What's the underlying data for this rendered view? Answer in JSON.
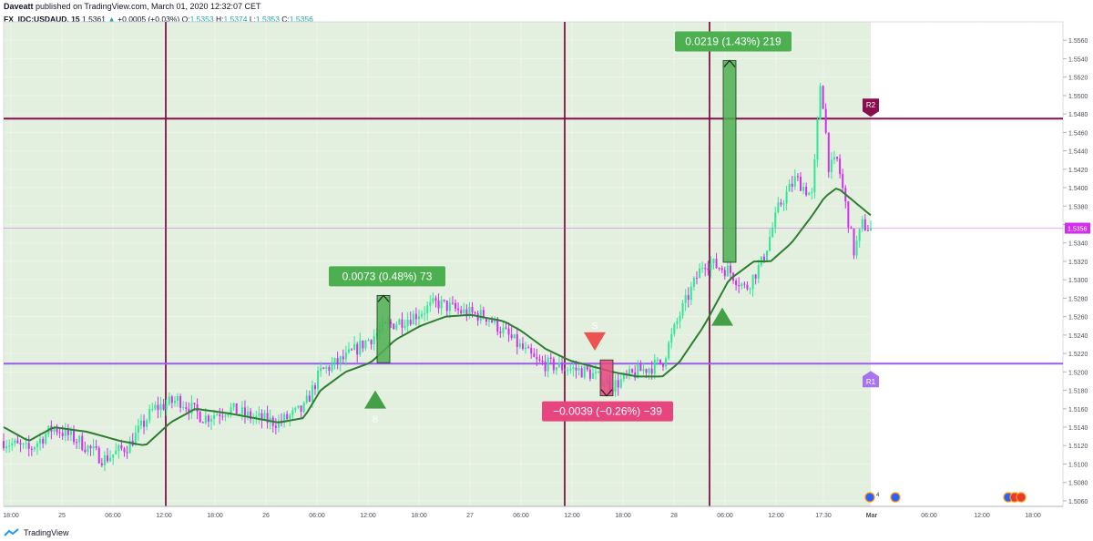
{
  "header": {
    "author": "Daveatt",
    "published_text": "published on TradingView.com, March 01, 2020 12:32:07 CET",
    "symbol": "FX_IDC:USDAUD, 15",
    "last": "1.5361",
    "change": "+0.0005 (+0.03%)",
    "o_label": "O:",
    "o_value": "1.5353",
    "h_label": "H:",
    "h_value": "1.5374",
    "l_label": "L:",
    "l_value": "1.5353",
    "c_label": "C:",
    "c_value": "1.5356"
  },
  "footer": {
    "brand": "TradingView"
  },
  "colors": {
    "bg_shade": "#e3efdf",
    "up": "#2ee896",
    "down": "#d22ef0",
    "ma": "#2e7d32",
    "res_line": "#880e4f",
    "sup_line": "#9c5cf0",
    "vline": "#882a55",
    "measure_up": "#4caf50",
    "measure_down": "#e7457e"
  },
  "chart_data": {
    "type": "candlestick",
    "symbol": "FX_IDC:USDAUD, 15",
    "price_axis": {
      "ticks": [
        "1.5560",
        "1.5540",
        "1.5520",
        "1.5500",
        "1.5480",
        "1.5460",
        "1.5440",
        "1.5420",
        "1.5400",
        "1.5380",
        "1.5360",
        "1.5340",
        "1.5320",
        "1.5300",
        "1.5280",
        "1.5260",
        "1.5240",
        "1.5220",
        "1.5200",
        "1.5180",
        "1.5160",
        "1.5140",
        "1.5120",
        "1.5100",
        "1.5080",
        "1.5060"
      ],
      "range": [
        1.5054,
        1.558
      ],
      "last_price_label": "1.5356"
    },
    "time_axis": {
      "labels": [
        "18:00",
        "25",
        "06:00",
        "12:00",
        "18:00",
        "26",
        "06:00",
        "12:00",
        "18:00",
        "27",
        "06:00",
        "12:00",
        "18:00",
        "28",
        "06:00",
        "12:00",
        "17:30",
        "Mar",
        "06:00",
        "12:00",
        "18:00"
      ]
    },
    "resistance": {
      "label": "R2",
      "price": 1.5475
    },
    "support": {
      "label": "R1",
      "price": 1.5209
    },
    "measurements": [
      {
        "label": "0.0073 (0.48%) 73",
        "from": 1.521,
        "to": 1.5283,
        "direction": "up"
      },
      {
        "label": "0.0219 (1.43%) 219",
        "from": 1.5319,
        "to": 1.5538,
        "direction": "up"
      },
      {
        "label": "−0.0039 (−0.26%) −39",
        "from": 1.5213,
        "to": 1.5174,
        "direction": "down"
      }
    ],
    "signals": [
      {
        "type": "buy",
        "label": "B",
        "price": 1.5172
      },
      {
        "type": "sell",
        "label": "S",
        "price": 1.5235
      },
      {
        "type": "buy",
        "label": "",
        "price": 1.5262
      }
    ],
    "sessions": [
      "25",
      "26",
      "27",
      "28",
      "Mar"
    ],
    "shaded_region": "background shading ends at the last bar",
    "moving_average": true,
    "event_icons": [
      {
        "label": "4"
      },
      {
        "label": "3"
      }
    ],
    "ma_anchors": [
      [
        0,
        1.514
      ],
      [
        0.03,
        1.5125
      ],
      [
        0.06,
        1.514
      ],
      [
        0.1,
        1.5135
      ],
      [
        0.14,
        1.5125
      ],
      [
        0.17,
        1.512
      ],
      [
        0.2,
        1.5145
      ],
      [
        0.23,
        1.516
      ],
      [
        0.27,
        1.5155
      ],
      [
        0.3,
        1.515
      ],
      [
        0.33,
        1.5145
      ],
      [
        0.36,
        1.515
      ],
      [
        0.38,
        1.518
      ],
      [
        0.41,
        1.52
      ],
      [
        0.44,
        1.521
      ],
      [
        0.47,
        1.5235
      ],
      [
        0.5,
        1.525
      ],
      [
        0.53,
        1.526
      ],
      [
        0.56,
        1.5262
      ],
      [
        0.6,
        1.5255
      ],
      [
        0.62,
        1.5245
      ],
      [
        0.65,
        1.5225
      ],
      [
        0.68,
        1.5212
      ],
      [
        0.71,
        1.5205
      ],
      [
        0.73,
        1.52
      ],
      [
        0.76,
        1.5195
      ],
      [
        0.79,
        1.5195
      ],
      [
        0.81,
        1.521
      ],
      [
        0.84,
        1.525
      ],
      [
        0.87,
        1.53
      ],
      [
        0.9,
        1.532
      ],
      [
        0.92,
        1.532
      ],
      [
        0.945,
        1.534
      ],
      [
        0.97,
        1.537
      ],
      [
        0.985,
        1.539
      ],
      [
        1.0,
        1.54
      ],
      [
        1.02,
        1.5385
      ],
      [
        1.04,
        1.537
      ]
    ],
    "price_anchors": [
      [
        0,
        1.5125
      ],
      [
        0.03,
        1.5115
      ],
      [
        0.06,
        1.514
      ],
      [
        0.09,
        1.5125
      ],
      [
        0.12,
        1.5105
      ],
      [
        0.15,
        1.512
      ],
      [
        0.18,
        1.516
      ],
      [
        0.21,
        1.517
      ],
      [
        0.24,
        1.515
      ],
      [
        0.27,
        1.516
      ],
      [
        0.3,
        1.515
      ],
      [
        0.33,
        1.5145
      ],
      [
        0.36,
        1.516
      ],
      [
        0.38,
        1.52
      ],
      [
        0.41,
        1.5215
      ],
      [
        0.43,
        1.523
      ],
      [
        0.46,
        1.525
      ],
      [
        0.49,
        1.526
      ],
      [
        0.52,
        1.5275
      ],
      [
        0.55,
        1.5265
      ],
      [
        0.58,
        1.526
      ],
      [
        0.61,
        1.5235
      ],
      [
        0.64,
        1.521
      ],
      [
        0.67,
        1.5205
      ],
      [
        0.7,
        1.52
      ],
      [
        0.73,
        1.5185
      ],
      [
        0.76,
        1.52
      ],
      [
        0.79,
        1.521
      ],
      [
        0.81,
        1.526
      ],
      [
        0.84,
        1.532
      ],
      [
        0.87,
        1.531
      ],
      [
        0.89,
        1.529
      ],
      [
        0.91,
        1.532
      ],
      [
        0.93,
        1.538
      ],
      [
        0.95,
        1.541
      ],
      [
        0.97,
        1.539
      ],
      [
        0.98,
        1.552
      ],
      [
        0.99,
        1.542
      ],
      [
        1.0,
        1.543
      ],
      [
        1.02,
        1.533
      ],
      [
        1.03,
        1.536
      ],
      [
        1.04,
        1.5355
      ]
    ]
  }
}
